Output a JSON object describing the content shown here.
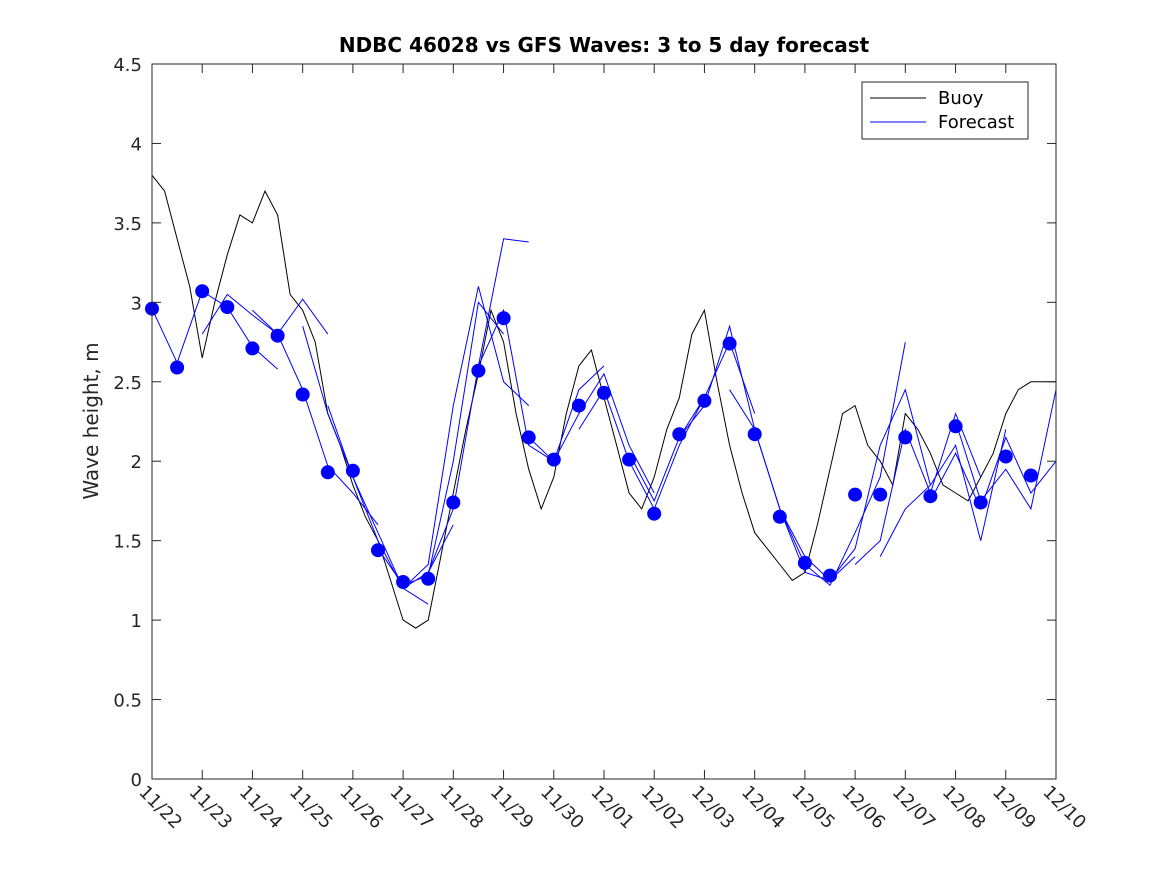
{
  "chart_data": {
    "type": "line",
    "title": "NDBC 46028 vs GFS Waves: 3 to 5 day forecast",
    "xlabel": "",
    "ylabel": "Wave height, m",
    "ylim": [
      0,
      4.5
    ],
    "xlim": [
      0,
      18
    ],
    "yticks": [
      0,
      0.5,
      1,
      1.5,
      2,
      2.5,
      3,
      3.5,
      4,
      4.5
    ],
    "ytick_labels": [
      "0",
      "0.5",
      "1",
      "1.5",
      "2",
      "2.5",
      "3",
      "3.5",
      "4",
      "4.5"
    ],
    "xtick_labels": [
      "11/22",
      "11/23",
      "11/24",
      "11/25",
      "11/26",
      "11/27",
      "11/28",
      "11/29",
      "11/30",
      "12/01",
      "12/02",
      "12/03",
      "12/04",
      "12/05",
      "12/06",
      "12/07",
      "12/08",
      "12/09",
      "12/10"
    ],
    "legend": {
      "location": "top-right",
      "entries": [
        "Buoy",
        "Forecast"
      ]
    },
    "colors": {
      "buoy": "#000000",
      "forecast": "#0000ff",
      "axis": "#262626"
    },
    "buoy": {
      "name": "Buoy",
      "x": [
        0.0,
        0.25,
        0.5,
        0.75,
        1.0,
        1.25,
        1.5,
        1.75,
        2.0,
        2.25,
        2.5,
        2.75,
        3.0,
        3.25,
        3.5,
        3.75,
        4.0,
        4.25,
        4.5,
        4.75,
        5.0,
        5.25,
        5.5,
        5.75,
        6.0,
        6.25,
        6.5,
        6.75,
        7.0,
        7.25,
        7.5,
        7.75,
        8.0,
        8.25,
        8.5,
        8.75,
        9.0,
        9.25,
        9.5,
        9.75,
        10.0,
        10.25,
        10.5,
        10.75,
        11.0,
        11.25,
        11.5,
        11.75,
        12.0,
        12.25,
        12.5,
        12.75,
        13.0,
        13.25,
        13.5,
        13.75,
        14.0,
        14.25,
        14.5,
        14.75,
        15.0,
        15.25,
        15.5,
        15.75,
        16.0,
        16.25,
        16.5,
        16.75,
        17.0,
        17.25,
        17.5,
        17.75,
        18.0
      ],
      "values": [
        3.8,
        3.7,
        3.4,
        3.1,
        2.65,
        3.0,
        3.3,
        3.55,
        3.5,
        3.7,
        3.55,
        3.05,
        2.95,
        2.75,
        2.3,
        2.1,
        1.85,
        1.65,
        1.5,
        1.25,
        1.0,
        0.95,
        1.0,
        1.4,
        1.8,
        2.2,
        2.55,
        2.95,
        2.75,
        2.3,
        1.95,
        1.7,
        1.9,
        2.3,
        2.6,
        2.7,
        2.4,
        2.1,
        1.8,
        1.7,
        1.9,
        2.2,
        2.4,
        2.8,
        2.95,
        2.5,
        2.1,
        1.8,
        1.55,
        1.45,
        1.35,
        1.25,
        1.3,
        1.6,
        1.95,
        2.3,
        2.35,
        2.1,
        2.0,
        1.85,
        2.3,
        2.2,
        2.05,
        1.85,
        1.8,
        1.75,
        1.9,
        2.05,
        2.3,
        2.45,
        2.5,
        2.5,
        2.5
      ]
    },
    "forecast": {
      "name": "Forecast",
      "series": [
        {
          "x": [
            0.0,
            0.5,
            1.0,
            1.5,
            2.0,
            2.5
          ],
          "values": [
            2.96,
            2.62,
            3.07,
            2.97,
            2.72,
            2.58
          ]
        },
        {
          "x": [
            1.0,
            1.5,
            2.0,
            2.5,
            3.0,
            3.5
          ],
          "values": [
            2.8,
            3.05,
            2.92,
            2.8,
            3.02,
            2.8
          ]
        },
        {
          "x": [
            2.0,
            2.5,
            3.0,
            3.5,
            4.0,
            4.5
          ],
          "values": [
            2.95,
            2.8,
            2.45,
            1.97,
            1.8,
            1.6
          ]
        },
        {
          "x": [
            3.0,
            3.5,
            4.0,
            4.5,
            5.0,
            5.5
          ],
          "values": [
            2.85,
            2.3,
            1.9,
            1.5,
            1.2,
            1.1
          ]
        },
        {
          "x": [
            3.5,
            4.0,
            4.5,
            5.0,
            5.5,
            6.0
          ],
          "values": [
            2.35,
            1.9,
            1.55,
            1.2,
            1.3,
            1.6
          ]
        },
        {
          "x": [
            4.5,
            5.0,
            5.5,
            6.0,
            6.5,
            7.0
          ],
          "values": [
            1.45,
            1.22,
            1.28,
            2.0,
            3.0,
            2.8
          ]
        },
        {
          "x": [
            5.0,
            5.5,
            6.0,
            6.5,
            7.0,
            7.5
          ],
          "values": [
            1.2,
            1.35,
            2.35,
            3.1,
            2.5,
            2.35
          ]
        },
        {
          "x": [
            5.5,
            6.0,
            6.5,
            7.0,
            7.5,
            7.5
          ],
          "values": [
            1.3,
            1.7,
            2.6,
            3.4,
            3.38,
            3.38
          ]
        },
        {
          "x": [
            6.5,
            7.0,
            7.5,
            8.0,
            8.5,
            9.0
          ],
          "values": [
            2.6,
            2.95,
            2.1,
            2.0,
            2.45,
            2.6
          ]
        },
        {
          "x": [
            7.5,
            8.0,
            8.5,
            9.0,
            9.5,
            10.0
          ],
          "values": [
            2.15,
            2.0,
            2.3,
            2.55,
            2.1,
            1.8
          ]
        },
        {
          "x": [
            8.5,
            9.0,
            9.5,
            10.0,
            10.5,
            11.0
          ],
          "values": [
            2.2,
            2.45,
            2.0,
            1.7,
            2.1,
            2.4
          ]
        },
        {
          "x": [
            9.5,
            10.0,
            10.5,
            11.0,
            11.5,
            12.0
          ],
          "values": [
            2.05,
            1.75,
            2.15,
            2.4,
            2.75,
            2.3
          ]
        },
        {
          "x": [
            10.5,
            11.0,
            11.5,
            12.0,
            12.5,
            13.0
          ],
          "values": [
            2.15,
            2.35,
            2.85,
            2.2,
            1.7,
            1.4
          ]
        },
        {
          "x": [
            11.5,
            12.0,
            12.5,
            13.0,
            13.5,
            14.0
          ],
          "values": [
            2.45,
            2.2,
            1.7,
            1.3,
            1.25,
            1.4
          ]
        },
        {
          "x": [
            12.5,
            13.0,
            13.5,
            14.0,
            14.5,
            15.0
          ],
          "values": [
            1.7,
            1.35,
            1.22,
            1.55,
            1.9,
            2.75
          ]
        },
        {
          "x": [
            13.0,
            13.5,
            14.0,
            14.5,
            15.0,
            15.5
          ],
          "values": [
            1.4,
            1.25,
            1.45,
            2.1,
            2.45,
            1.85
          ]
        },
        {
          "x": [
            14.0,
            14.5,
            15.0,
            15.5,
            16.0,
            16.5
          ],
          "values": [
            1.35,
            1.5,
            2.2,
            1.8,
            2.3,
            1.9
          ]
        },
        {
          "x": [
            14.5,
            15.0,
            15.5,
            16.0,
            16.5,
            17.0
          ],
          "values": [
            1.4,
            1.7,
            1.85,
            2.1,
            1.5,
            2.2
          ]
        },
        {
          "x": [
            15.5,
            16.0,
            16.5,
            17.0,
            17.5,
            18.0
          ],
          "values": [
            1.75,
            2.05,
            1.7,
            2.15,
            1.8,
            2.0
          ]
        },
        {
          "x": [
            16.0,
            16.5,
            17.0,
            17.5,
            18.0
          ],
          "values": [
            2.25,
            1.75,
            1.95,
            1.7,
            2.45
          ]
        }
      ]
    },
    "markers": {
      "x": [
        0.0,
        0.5,
        1.0,
        1.5,
        2.0,
        2.5,
        3.0,
        3.5,
        4.0,
        4.5,
        5.0,
        5.5,
        6.0,
        6.5,
        7.0,
        7.5,
        8.0,
        8.5,
        9.0,
        9.5,
        10.0,
        10.5,
        11.0,
        11.5,
        12.0,
        12.5,
        13.0,
        13.5,
        14.0,
        14.5,
        15.0,
        15.5,
        16.0,
        16.5,
        17.0,
        17.5
      ],
      "values": [
        2.96,
        2.59,
        3.07,
        2.97,
        2.71,
        2.79,
        2.42,
        1.93,
        1.94,
        1.44,
        1.24,
        1.26,
        1.74,
        2.57,
        2.9,
        2.15,
        2.01,
        2.35,
        2.43,
        2.01,
        1.67,
        2.17,
        2.38,
        2.74,
        2.17,
        1.65,
        1.36,
        1.28,
        1.79,
        1.79,
        2.15,
        1.78,
        2.22,
        1.74,
        2.03,
        1.91
      ]
    }
  }
}
